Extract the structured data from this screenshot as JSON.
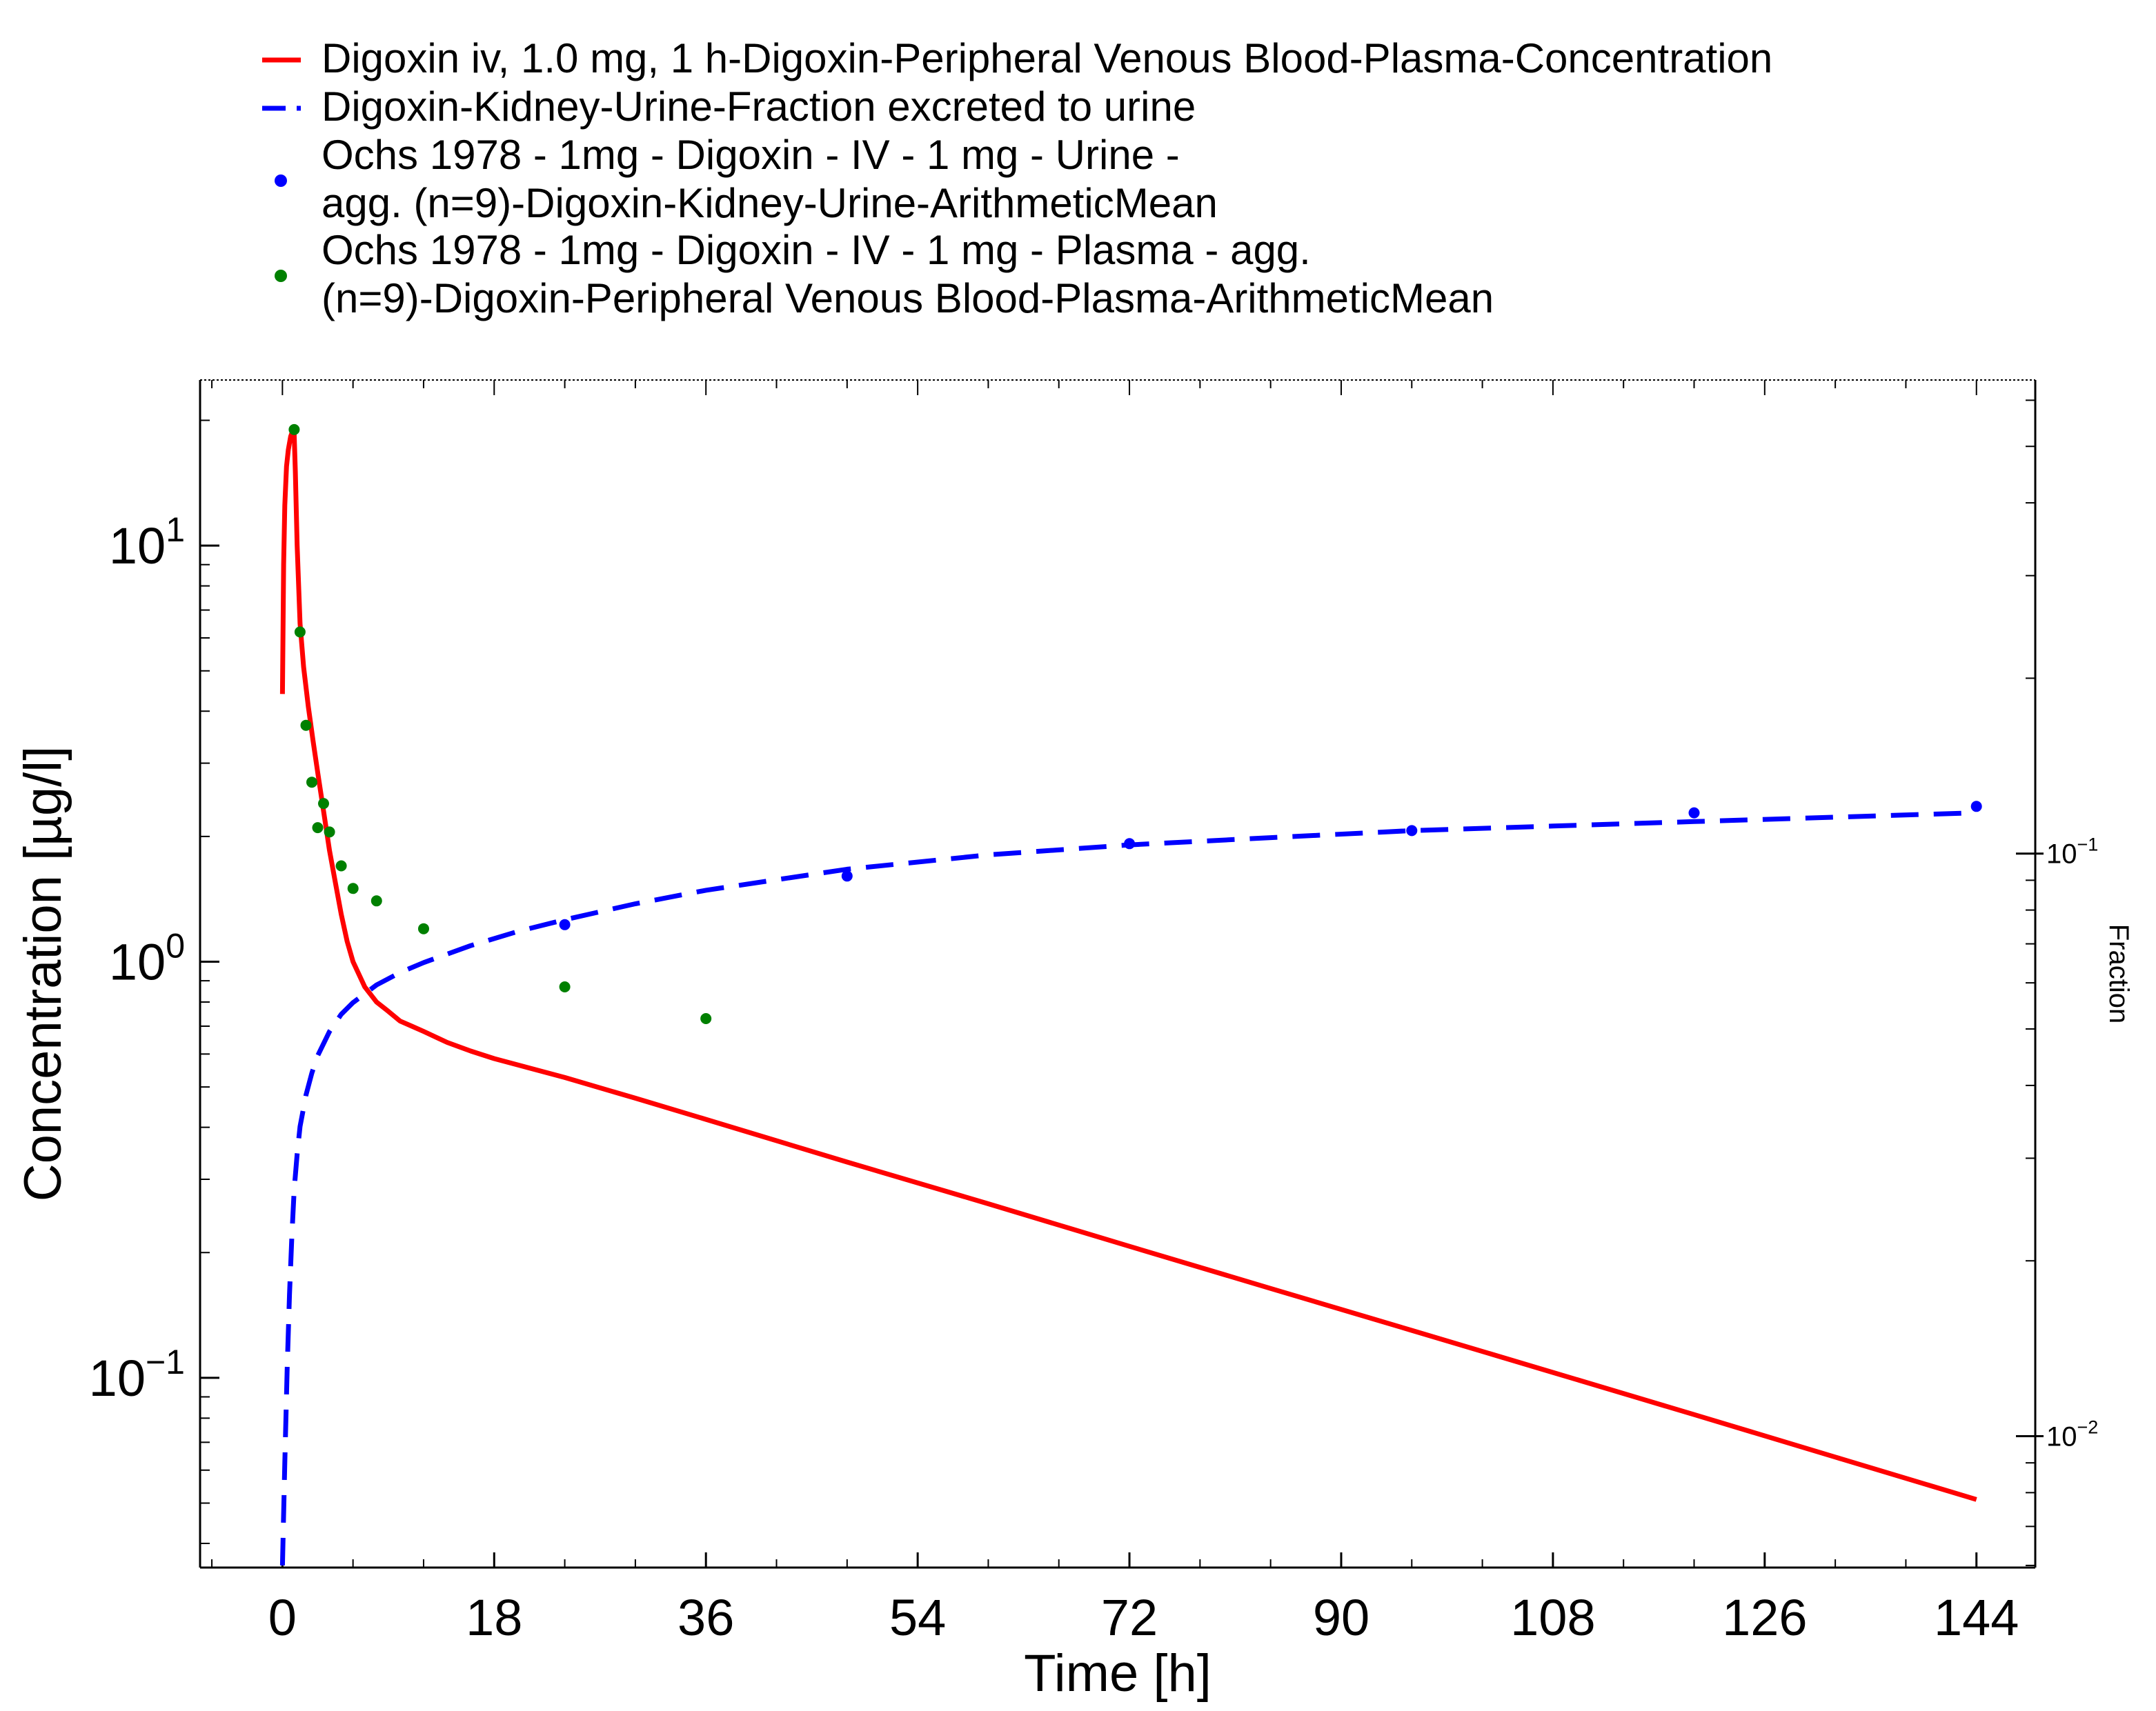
{
  "chart_data": {
    "type": "line",
    "xlabel": "Time [h]",
    "ylabel": "Concentration [µg/l]",
    "y2label": "Fraction",
    "xlim": [
      -7,
      149
    ],
    "ylim": [
      0.035,
      25
    ],
    "y2lim": [
      0.00595,
      0.65
    ],
    "y_scale": "log",
    "y2_scale": "log",
    "grid": false,
    "legend_position": "top",
    "x_ticks": [
      0,
      18,
      36,
      54,
      72,
      90,
      108,
      126,
      144
    ],
    "x_tick_labels": [
      "0",
      "18",
      "36",
      "54",
      "72",
      "90",
      "108",
      "126",
      "144"
    ],
    "y_ticks": [
      {
        "value": 10,
        "base": "10",
        "exp": "1"
      },
      {
        "value": 1,
        "base": "10",
        "exp": "0"
      },
      {
        "value": 0.1,
        "base": "10",
        "exp": "−1"
      }
    ],
    "y2_ticks": [
      {
        "value": 0.1,
        "base": "10",
        "exp": "−1"
      },
      {
        "value": 0.01,
        "base": "10",
        "exp": "−2"
      }
    ],
    "series": [
      {
        "name": "Digoxin iv, 1.0 mg, 1 h-Digoxin-Peripheral Venous Blood-Plasma-Concentration",
        "kind": "line",
        "style": "solid",
        "color": "#ff0000",
        "axis": "left",
        "x": [
          0,
          0.1,
          0.2,
          0.35,
          0.5,
          0.7,
          0.85,
          1.0,
          1.1,
          1.25,
          1.5,
          1.8,
          2.2,
          2.6,
          3,
          3.5,
          4,
          4.5,
          5,
          5.5,
          6,
          7,
          8,
          9,
          10,
          11,
          12,
          14,
          16,
          18,
          20,
          24,
          30,
          36,
          48,
          60,
          72,
          84,
          96,
          108,
          120,
          132,
          144
        ],
        "y": [
          4.4,
          9,
          12.5,
          15.5,
          17,
          18.3,
          18.8,
          18.5,
          15,
          10,
          6.5,
          5.1,
          4.1,
          3.4,
          2.85,
          2.3,
          1.85,
          1.55,
          1.3,
          1.12,
          1.0,
          0.87,
          0.8,
          0.76,
          0.72,
          0.7,
          0.68,
          0.64,
          0.61,
          0.585,
          0.565,
          0.527,
          0.47,
          0.418,
          0.33,
          0.262,
          0.207,
          0.164,
          0.13,
          0.103,
          0.0816,
          0.0645,
          0.051
        ]
      },
      {
        "name": "Digoxin-Kidney-Urine-Fraction excreted to urine",
        "kind": "line",
        "style": "dashed",
        "color": "#0000ff",
        "axis": "right",
        "x": [
          0,
          0.2,
          0.4,
          0.6,
          0.8,
          1.0,
          1.25,
          1.5,
          2,
          2.5,
          3,
          4,
          5,
          6,
          8,
          10,
          12,
          16,
          20,
          24,
          30,
          36,
          48,
          60,
          72,
          84,
          96,
          108,
          120,
          132,
          144
        ],
        "y": [
          0.006,
          0.009,
          0.013,
          0.0175,
          0.022,
          0.0265,
          0.0305,
          0.034,
          0.0385,
          0.042,
          0.045,
          0.0495,
          0.053,
          0.0555,
          0.0595,
          0.0625,
          0.065,
          0.0695,
          0.0735,
          0.077,
          0.082,
          0.0865,
          0.094,
          0.0995,
          0.1035,
          0.1065,
          0.1095,
          0.1115,
          0.1135,
          0.1155,
          0.1175
        ]
      },
      {
        "name": "Ochs 1978 - 1mg - Digoxin - IV - 1 mg - Urine - agg. (n=9)-Digoxin-Kidney-Urine-ArithmeticMean",
        "name_lines": [
          "Ochs 1978 - 1mg - Digoxin - IV - 1 mg - Urine -",
          " agg. (n=9)-Digoxin-Kidney-Urine-ArithmeticMean"
        ],
        "kind": "scatter",
        "color": "#0000ff",
        "axis": "right",
        "x": [
          24,
          48,
          72,
          96,
          120,
          144
        ],
        "y": [
          0.0755,
          0.0915,
          0.104,
          0.1095,
          0.1175,
          0.1205
        ]
      },
      {
        "name": "Ochs 1978 - 1mg - Digoxin - IV - 1 mg - Plasma - agg. (n=9)-Digoxin-Peripheral Venous Blood-Plasma-ArithmeticMean",
        "name_lines": [
          "Ochs 1978 - 1mg - Digoxin - IV - 1 mg - Plasma - agg.",
          "(n=9)-Digoxin-Peripheral Venous Blood-Plasma-ArithmeticMean"
        ],
        "kind": "scatter",
        "color": "#008000",
        "axis": "left",
        "x": [
          1,
          1.5,
          2,
          2.5,
          3,
          3.5,
          4,
          5,
          6,
          8,
          12,
          24,
          36
        ],
        "y": [
          19,
          6.2,
          3.7,
          2.7,
          2.1,
          2.4,
          2.05,
          1.7,
          1.5,
          1.4,
          1.2,
          0.87,
          0.73
        ]
      }
    ]
  }
}
